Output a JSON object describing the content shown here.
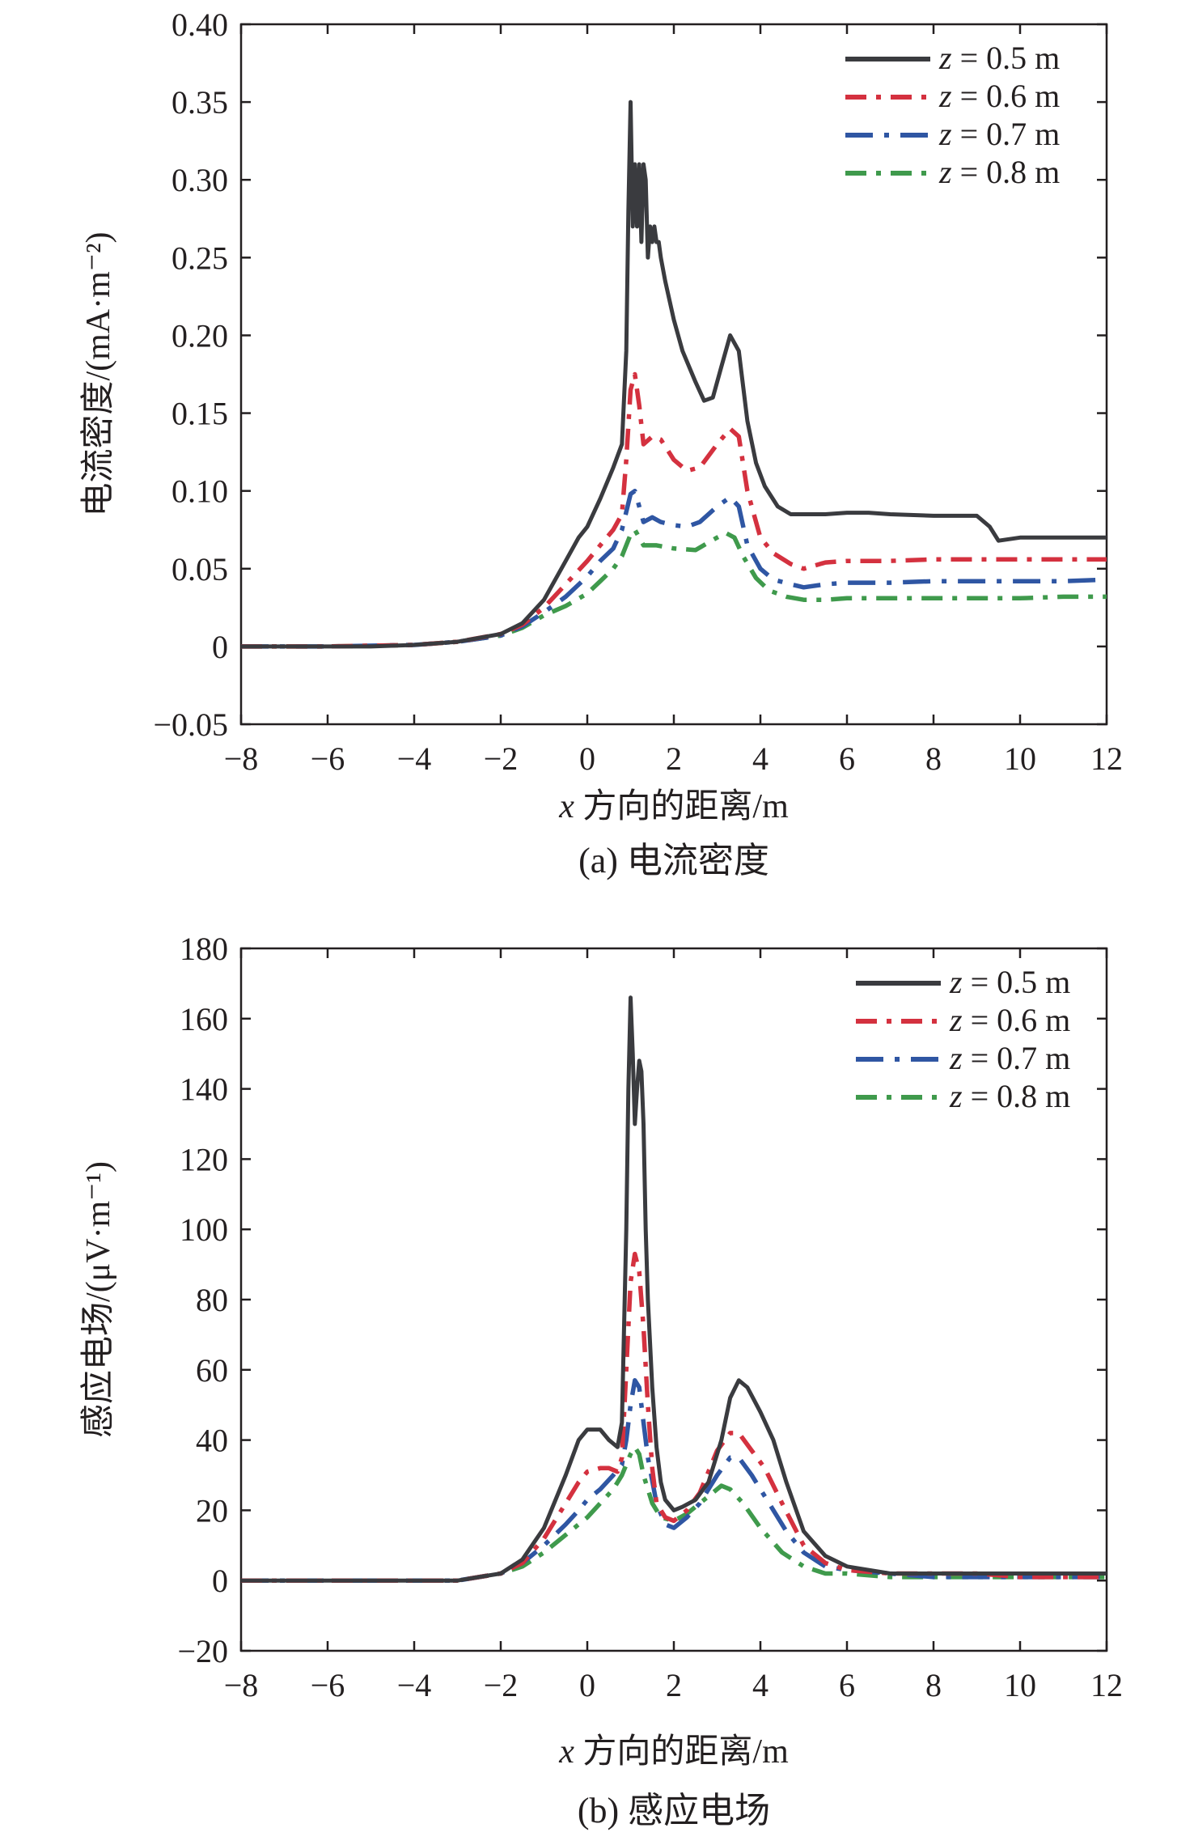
{
  "figure": {
    "panels": [
      {
        "caption": "(a) 电流密度",
        "xlabel_var": "x",
        "xlabel_text": " 方向的距离/m",
        "ylabel": "电流密度/(mA·m⁻²)"
      },
      {
        "caption": "(b) 感应电场",
        "xlabel_var": "x",
        "xlabel_text": " 方向的距离/m",
        "ylabel": "感应电场/(μV·m⁻¹)"
      }
    ],
    "legend_var": "z",
    "colors": {
      "black": "#3a3b3f",
      "red": "#d4313f",
      "blue": "#2f56a3",
      "green": "#3f9a4c",
      "axis": "#231f20"
    }
  },
  "chart_data": [
    {
      "type": "line",
      "title": "(a) 电流密度",
      "xlabel": "x 方向的距离/m",
      "ylabel": "电流密度/(mA·m⁻²)",
      "xlim": [
        -8,
        12
      ],
      "ylim": [
        -0.05,
        0.4
      ],
      "xticks": [
        -8,
        -6,
        -4,
        -2,
        0,
        2,
        4,
        6,
        8,
        10,
        12
      ],
      "xtick_labels": [
        "−8",
        "−6",
        "−4",
        "−2",
        "0",
        "2",
        "4",
        "6",
        "8",
        "10",
        "12"
      ],
      "yticks": [
        -0.05,
        0,
        0.05,
        0.1,
        0.15,
        0.2,
        0.25,
        0.3,
        0.35,
        0.4
      ],
      "ytick_labels": [
        "−0.05",
        "0",
        "0.05",
        "0.10",
        "0.15",
        "0.20",
        "0.25",
        "0.30",
        "0.35",
        "0.40"
      ],
      "legend_position": "top-right",
      "grid": false,
      "series": [
        {
          "name": "z = 0.5 m",
          "legend_value": " = 0.5 m",
          "color": "#3a3b3f",
          "style": "solid",
          "x": [
            -8,
            -6,
            -5,
            -4,
            -3,
            -2,
            -1.5,
            -1,
            -0.5,
            -0.2,
            0,
            0.3,
            0.6,
            0.8,
            0.9,
            0.95,
            1.0,
            1.05,
            1.1,
            1.15,
            1.2,
            1.25,
            1.3,
            1.35,
            1.4,
            1.45,
            1.5,
            1.55,
            1.6,
            1.65,
            1.7,
            1.8,
            2.0,
            2.2,
            2.5,
            2.7,
            2.9,
            3.1,
            3.3,
            3.5,
            3.7,
            3.9,
            4.1,
            4.4,
            4.7,
            5.0,
            5.5,
            6.0,
            6.5,
            7.0,
            8.0,
            9.0,
            9.3,
            9.5,
            10.0,
            11.0,
            12.0
          ],
          "y": [
            0,
            0,
            0,
            0.001,
            0.003,
            0.008,
            0.015,
            0.03,
            0.055,
            0.07,
            0.077,
            0.095,
            0.115,
            0.13,
            0.19,
            0.28,
            0.35,
            0.27,
            0.31,
            0.27,
            0.31,
            0.26,
            0.31,
            0.3,
            0.25,
            0.27,
            0.26,
            0.27,
            0.26,
            0.26,
            0.25,
            0.235,
            0.21,
            0.19,
            0.17,
            0.158,
            0.16,
            0.18,
            0.2,
            0.19,
            0.145,
            0.118,
            0.103,
            0.09,
            0.085,
            0.085,
            0.085,
            0.086,
            0.086,
            0.085,
            0.084,
            0.084,
            0.077,
            0.068,
            0.07,
            0.07,
            0.07
          ]
        },
        {
          "name": "z = 0.6 m",
          "legend_value": " = 0.6 m",
          "color": "#d4313f",
          "style": "dashdot",
          "x": [
            -8,
            -6,
            -4,
            -3,
            -2,
            -1.5,
            -1,
            -0.5,
            0,
            0.3,
            0.6,
            0.8,
            0.9,
            1.0,
            1.1,
            1.2,
            1.3,
            1.5,
            1.7,
            2.0,
            2.3,
            2.6,
            3.0,
            3.3,
            3.5,
            3.7,
            4.0,
            4.3,
            4.7,
            5.0,
            5.5,
            6.0,
            7.0,
            8.0,
            9.0,
            10.0,
            11.0,
            12.0
          ],
          "y": [
            0,
            0,
            0.001,
            0.003,
            0.008,
            0.014,
            0.025,
            0.04,
            0.055,
            0.065,
            0.075,
            0.085,
            0.12,
            0.165,
            0.175,
            0.155,
            0.13,
            0.135,
            0.133,
            0.12,
            0.113,
            0.115,
            0.13,
            0.14,
            0.135,
            0.1,
            0.07,
            0.06,
            0.053,
            0.05,
            0.054,
            0.055,
            0.055,
            0.056,
            0.056,
            0.056,
            0.056,
            0.056
          ]
        },
        {
          "name": "z = 0.7 m",
          "legend_value": " = 0.7 m",
          "color": "#2f56a3",
          "style": "longdashdot",
          "x": [
            -8,
            -6,
            -4,
            -3,
            -2,
            -1.5,
            -1,
            -0.5,
            0,
            0.3,
            0.6,
            0.8,
            1.0,
            1.1,
            1.2,
            1.3,
            1.5,
            1.7,
            2.0,
            2.3,
            2.6,
            3.0,
            3.3,
            3.5,
            3.7,
            4.0,
            4.3,
            4.7,
            5.0,
            5.5,
            6.0,
            7.0,
            8.0,
            9.0,
            10.0,
            11.0,
            12.0
          ],
          "y": [
            0,
            0,
            0.001,
            0.003,
            0.007,
            0.013,
            0.022,
            0.032,
            0.045,
            0.055,
            0.063,
            0.075,
            0.098,
            0.1,
            0.09,
            0.08,
            0.083,
            0.08,
            0.078,
            0.077,
            0.08,
            0.09,
            0.096,
            0.09,
            0.065,
            0.05,
            0.043,
            0.04,
            0.038,
            0.04,
            0.041,
            0.041,
            0.042,
            0.042,
            0.042,
            0.042,
            0.043
          ]
        },
        {
          "name": "z = 0.8 m",
          "legend_value": " = 0.8 m",
          "color": "#3f9a4c",
          "style": "dashdot",
          "x": [
            -8,
            -6,
            -4,
            -3,
            -2,
            -1.5,
            -1,
            -0.5,
            0,
            0.3,
            0.6,
            0.8,
            1.0,
            1.1,
            1.3,
            1.6,
            2.0,
            2.5,
            3.0,
            3.2,
            3.4,
            3.6,
            3.9,
            4.2,
            4.6,
            5.0,
            5.5,
            6.0,
            7.0,
            8.0,
            9.0,
            10.0,
            11.0,
            12.0
          ],
          "y": [
            0,
            0,
            0.001,
            0.003,
            0.007,
            0.012,
            0.02,
            0.026,
            0.034,
            0.042,
            0.05,
            0.058,
            0.072,
            0.075,
            0.065,
            0.065,
            0.063,
            0.062,
            0.07,
            0.073,
            0.07,
            0.058,
            0.044,
            0.036,
            0.032,
            0.03,
            0.03,
            0.031,
            0.031,
            0.031,
            0.031,
            0.031,
            0.032,
            0.032
          ]
        }
      ]
    },
    {
      "type": "line",
      "title": "(b) 感应电场",
      "xlabel": "x 方向的距离/m",
      "ylabel": "感应电场/(μV·m⁻¹)",
      "xlim": [
        -8,
        12
      ],
      "ylim": [
        -20,
        180
      ],
      "xticks": [
        -8,
        -6,
        -4,
        -2,
        0,
        2,
        4,
        6,
        8,
        10,
        12
      ],
      "xtick_labels": [
        "−8",
        "−6",
        "−4",
        "−2",
        "0",
        "2",
        "4",
        "6",
        "8",
        "10",
        "12"
      ],
      "yticks": [
        -20,
        0,
        20,
        40,
        60,
        80,
        100,
        120,
        140,
        160,
        180
      ],
      "ytick_labels": [
        "−20",
        "0",
        "20",
        "40",
        "60",
        "80",
        "100",
        "120",
        "140",
        "160",
        "180"
      ],
      "legend_position": "top-right",
      "grid": false,
      "series": [
        {
          "name": "z = 0.5 m",
          "legend_value": " = 0.5 m",
          "color": "#3a3b3f",
          "style": "solid",
          "x": [
            -8,
            -6,
            -4,
            -3,
            -2,
            -1.5,
            -1,
            -0.5,
            -0.2,
            0,
            0.3,
            0.5,
            0.7,
            0.8,
            0.9,
            0.95,
            1.0,
            1.05,
            1.1,
            1.15,
            1.2,
            1.25,
            1.3,
            1.35,
            1.4,
            1.5,
            1.6,
            1.7,
            1.8,
            2.0,
            2.2,
            2.5,
            2.8,
            3.1,
            3.3,
            3.5,
            3.7,
            4.0,
            4.3,
            4.6,
            5.0,
            5.5,
            6.0,
            7.0,
            8.0,
            9.0,
            9.5,
            10.0,
            11.0,
            12.0
          ],
          "y": [
            0,
            0,
            0,
            0,
            2,
            6,
            15,
            30,
            40,
            43,
            43,
            40,
            38,
            45,
            100,
            140,
            166,
            150,
            130,
            140,
            148,
            145,
            130,
            100,
            80,
            55,
            38,
            28,
            23,
            20,
            21,
            23,
            28,
            40,
            52,
            57,
            55,
            48,
            40,
            28,
            14,
            7,
            4,
            2,
            2,
            2,
            2,
            2,
            2,
            2
          ]
        },
        {
          "name": "z = 0.6 m",
          "legend_value": " = 0.6 m",
          "color": "#d4313f",
          "style": "dashdot",
          "x": [
            -8,
            -6,
            -4,
            -3,
            -2,
            -1.5,
            -1,
            -0.5,
            -0.2,
            0,
            0.3,
            0.5,
            0.7,
            0.8,
            0.9,
            1.0,
            1.1,
            1.2,
            1.3,
            1.4,
            1.5,
            1.6,
            1.8,
            2.0,
            2.3,
            2.6,
            3.0,
            3.3,
            3.5,
            3.8,
            4.1,
            4.5,
            5.0,
            5.5,
            6.0,
            7.0,
            8.0,
            9.0,
            10.0,
            11.0,
            12.0
          ],
          "y": [
            0,
            0,
            0,
            0,
            2,
            5,
            12,
            22,
            28,
            31,
            32,
            32,
            31,
            35,
            60,
            85,
            93,
            88,
            72,
            50,
            32,
            22,
            18,
            17,
            20,
            25,
            37,
            42,
            42,
            37,
            32,
            22,
            10,
            5,
            3,
            2,
            2,
            2,
            1,
            1,
            1
          ]
        },
        {
          "name": "z = 0.7 m",
          "legend_value": " = 0.7 m",
          "color": "#2f56a3",
          "style": "longdashdot",
          "x": [
            -8,
            -6,
            -4,
            -3,
            -2,
            -1.5,
            -1,
            -0.5,
            -0.2,
            0,
            0.3,
            0.6,
            0.8,
            0.9,
            1.0,
            1.1,
            1.2,
            1.3,
            1.4,
            1.6,
            1.8,
            2.0,
            2.3,
            2.6,
            3.0,
            3.3,
            3.5,
            3.8,
            4.2,
            4.6,
            5.0,
            5.5,
            6.0,
            7.0,
            8.0,
            9.0,
            10.0,
            11.0,
            12.0
          ],
          "y": [
            0,
            0,
            0,
            0,
            2,
            5,
            10,
            16,
            20,
            23,
            26,
            30,
            33,
            40,
            50,
            57,
            55,
            45,
            35,
            22,
            16,
            15,
            18,
            22,
            30,
            35,
            35,
            30,
            22,
            14,
            8,
            4,
            3,
            2,
            1,
            1,
            1,
            1,
            1
          ]
        },
        {
          "name": "z = 0.8 m",
          "legend_value": " = 0.8 m",
          "color": "#3f9a4c",
          "style": "dashdot",
          "x": [
            -8,
            -6,
            -4,
            -3,
            -2,
            -1.5,
            -1,
            -0.5,
            0,
            0.3,
            0.6,
            0.8,
            1.0,
            1.1,
            1.2,
            1.3,
            1.5,
            1.7,
            2.0,
            2.3,
            2.6,
            2.9,
            3.1,
            3.3,
            3.6,
            4.0,
            4.5,
            5.0,
            5.5,
            6.0,
            7.0,
            8.0,
            9.0,
            10.0,
            11.0,
            12.0
          ],
          "y": [
            0,
            0,
            0,
            0,
            2,
            4,
            8,
            13,
            18,
            22,
            26,
            30,
            36,
            38,
            36,
            30,
            22,
            18,
            17,
            19,
            22,
            25,
            27,
            26,
            22,
            15,
            8,
            4,
            2,
            2,
            1,
            1,
            1,
            1,
            1,
            1
          ]
        }
      ]
    }
  ]
}
